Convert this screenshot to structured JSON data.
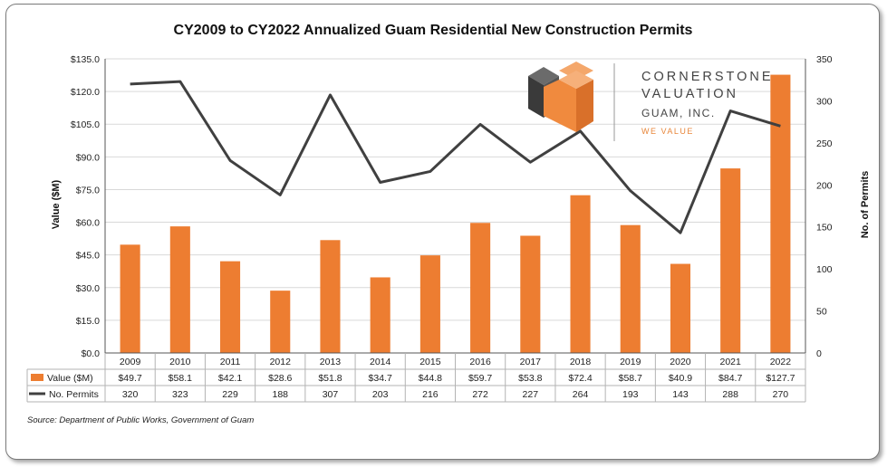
{
  "chart_data": {
    "type": "bar+line",
    "title": "CY2009 to CY2022 Annualized Guam Residential New Construction Permits",
    "categories": [
      "2009",
      "2010",
      "2011",
      "2012",
      "2013",
      "2014",
      "2015",
      "2016",
      "2017",
      "2018",
      "2019",
      "2020",
      "2021",
      "2022"
    ],
    "series": [
      {
        "name": "Value ($M)",
        "type": "bar",
        "axis": "left",
        "color": "#ed7d31",
        "values": [
          49.7,
          58.1,
          42.1,
          28.6,
          51.8,
          34.7,
          44.8,
          59.7,
          53.8,
          72.4,
          58.7,
          40.9,
          84.7,
          127.7
        ],
        "labels": [
          "$49.7",
          "$58.1",
          "$42.1",
          "$28.6",
          "$51.8",
          "$34.7",
          "$44.8",
          "$59.7",
          "$53.8",
          "$72.4",
          "$58.7",
          "$40.9",
          "$84.7",
          "$127.7"
        ]
      },
      {
        "name": "No. Permits",
        "type": "line",
        "axis": "right",
        "color": "#404040",
        "values": [
          320,
          323,
          229,
          188,
          307,
          203,
          216,
          272,
          227,
          264,
          193,
          143,
          288,
          270
        ],
        "labels": [
          "320",
          "323",
          "229",
          "188",
          "307",
          "203",
          "216",
          "272",
          "227",
          "264",
          "193",
          "143",
          "288",
          "270"
        ]
      }
    ],
    "ylabel": "Value ($M)",
    "y2label": "No. of Permits",
    "ylim": [
      0,
      135
    ],
    "y2lim": [
      0,
      350
    ],
    "yticks": [
      "$0.0",
      "$15.0",
      "$30.0",
      "$45.0",
      "$60.0",
      "$75.0",
      "$90.0",
      "$105.0",
      "$120.0",
      "$135.0"
    ],
    "y2ticks": [
      "0",
      "50",
      "100",
      "150",
      "200",
      "250",
      "300",
      "350"
    ],
    "grid": true,
    "legend": "data-table"
  },
  "logo": {
    "line1": "CORNERSTONE",
    "line2": "VALUATION",
    "line3": "GUAM, INC.",
    "tagline": "WE VALUE"
  },
  "source": "Source: Department of Public Works, Government of Guam"
}
